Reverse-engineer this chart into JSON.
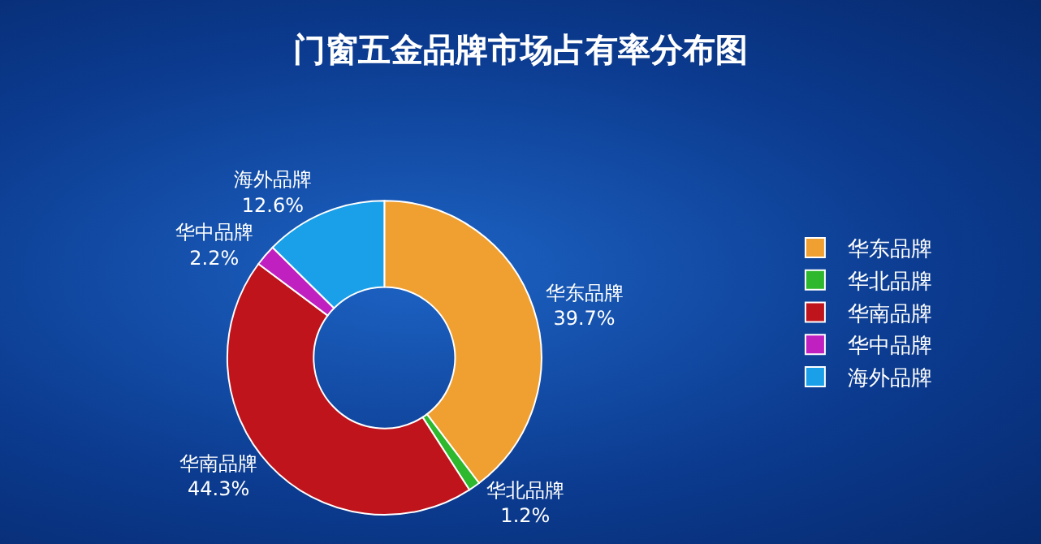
{
  "chart_data": {
    "type": "donut",
    "title": "门窗五金品牌市场占有率分布图",
    "categories": [
      "华东品牌",
      "华北品牌",
      "华南品牌",
      "华中品牌",
      "海外品牌"
    ],
    "values": [
      39.7,
      1.2,
      44.3,
      2.2,
      12.6
    ],
    "value_labels": [
      "39.7%",
      "1.2%",
      "44.3%",
      "2.2%",
      "12.6%"
    ],
    "colors": [
      "#f0a030",
      "#2db82d",
      "#c0141c",
      "#c020c0",
      "#1aa0e8"
    ],
    "legend": "right"
  }
}
